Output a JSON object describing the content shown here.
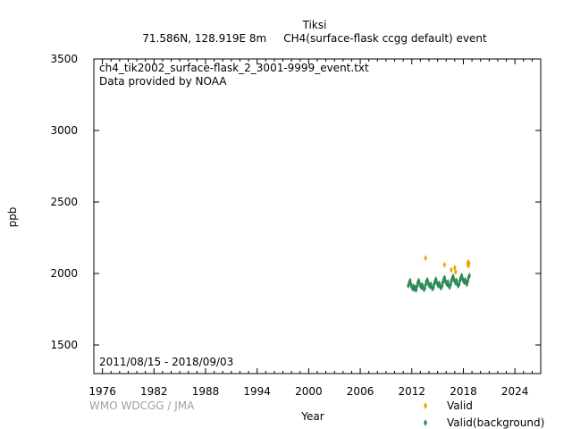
{
  "chart_data": {
    "type": "scatter",
    "title": "Tiksi",
    "subtitle": "71.586N, 128.919E 8m     CH4(surface-flask ccgg default) event",
    "xlabel": "Year",
    "ylabel": "ppb",
    "xlim": [
      1975,
      2027
    ],
    "ylim": [
      1300,
      3500
    ],
    "xticks": [
      1976,
      1982,
      1988,
      1994,
      2000,
      2006,
      2012,
      2018,
      2024
    ],
    "yticks": [
      1500,
      2000,
      2500,
      3000,
      3500
    ],
    "annotations": {
      "filename": "ch4_tik2002_surface-flask_2_3001-9999_event.txt",
      "provider": "Data provided by NOAA",
      "date_range": "2011/08/15 - 2018/09/03"
    },
    "credit": "WMO WDCGG / JMA",
    "grid": false,
    "legend_position": "bottom-right",
    "series": [
      {
        "name": "Valid",
        "color": "#f0a000",
        "marker": "diamond",
        "points": [
          [
            2013.6,
            2108
          ],
          [
            2015.8,
            2060
          ],
          [
            2016.6,
            2025
          ],
          [
            2017.0,
            2040
          ],
          [
            2017.1,
            2010
          ],
          [
            2018.5,
            2065
          ],
          [
            2018.55,
            2080
          ],
          [
            2018.6,
            2055
          ],
          [
            2018.65,
            2072
          ]
        ]
      },
      {
        "name": "Valid(background)",
        "color": "#2e8b57",
        "marker": "diamond",
        "points": [
          [
            2011.6,
            1915
          ],
          [
            2011.7,
            1935
          ],
          [
            2011.8,
            1950
          ],
          [
            2011.9,
            1925
          ],
          [
            2012.0,
            1905
          ],
          [
            2012.1,
            1895
          ],
          [
            2012.2,
            1910
          ],
          [
            2012.3,
            1890
          ],
          [
            2012.4,
            1900
          ],
          [
            2012.5,
            1885
          ],
          [
            2012.6,
            1910
          ],
          [
            2012.7,
            1935
          ],
          [
            2012.8,
            1950
          ],
          [
            2012.9,
            1930
          ],
          [
            2013.0,
            1915
          ],
          [
            2013.1,
            1905
          ],
          [
            2013.2,
            1920
          ],
          [
            2013.3,
            1900
          ],
          [
            2013.4,
            1890
          ],
          [
            2013.5,
            1895
          ],
          [
            2013.6,
            1920
          ],
          [
            2013.7,
            1945
          ],
          [
            2013.8,
            1955
          ],
          [
            2013.9,
            1935
          ],
          [
            2014.0,
            1920
          ],
          [
            2014.1,
            1910
          ],
          [
            2014.2,
            1925
          ],
          [
            2014.3,
            1905
          ],
          [
            2014.4,
            1895
          ],
          [
            2014.5,
            1900
          ],
          [
            2014.6,
            1925
          ],
          [
            2014.7,
            1945
          ],
          [
            2014.8,
            1960
          ],
          [
            2014.9,
            1940
          ],
          [
            2015.0,
            1925
          ],
          [
            2015.1,
            1915
          ],
          [
            2015.2,
            1930
          ],
          [
            2015.3,
            1910
          ],
          [
            2015.4,
            1900
          ],
          [
            2015.5,
            1910
          ],
          [
            2015.6,
            1935
          ],
          [
            2015.7,
            1955
          ],
          [
            2015.8,
            1970
          ],
          [
            2015.9,
            1950
          ],
          [
            2016.0,
            1935
          ],
          [
            2016.1,
            1925
          ],
          [
            2016.2,
            1940
          ],
          [
            2016.3,
            1915
          ],
          [
            2016.4,
            1905
          ],
          [
            2016.5,
            1920
          ],
          [
            2016.6,
            1945
          ],
          [
            2016.7,
            1965
          ],
          [
            2016.8,
            1980
          ],
          [
            2016.9,
            1960
          ],
          [
            2017.0,
            1945
          ],
          [
            2017.1,
            1935
          ],
          [
            2017.2,
            1950
          ],
          [
            2017.3,
            1925
          ],
          [
            2017.4,
            1915
          ],
          [
            2017.5,
            1925
          ],
          [
            2017.6,
            1950
          ],
          [
            2017.7,
            1970
          ],
          [
            2017.8,
            1985
          ],
          [
            2017.9,
            1965
          ],
          [
            2018.0,
            1950
          ],
          [
            2018.1,
            1940
          ],
          [
            2018.2,
            1955
          ],
          [
            2018.3,
            1935
          ],
          [
            2018.4,
            1925
          ],
          [
            2018.5,
            1945
          ],
          [
            2018.6,
            1970
          ],
          [
            2018.7,
            1985
          ]
        ]
      }
    ]
  }
}
